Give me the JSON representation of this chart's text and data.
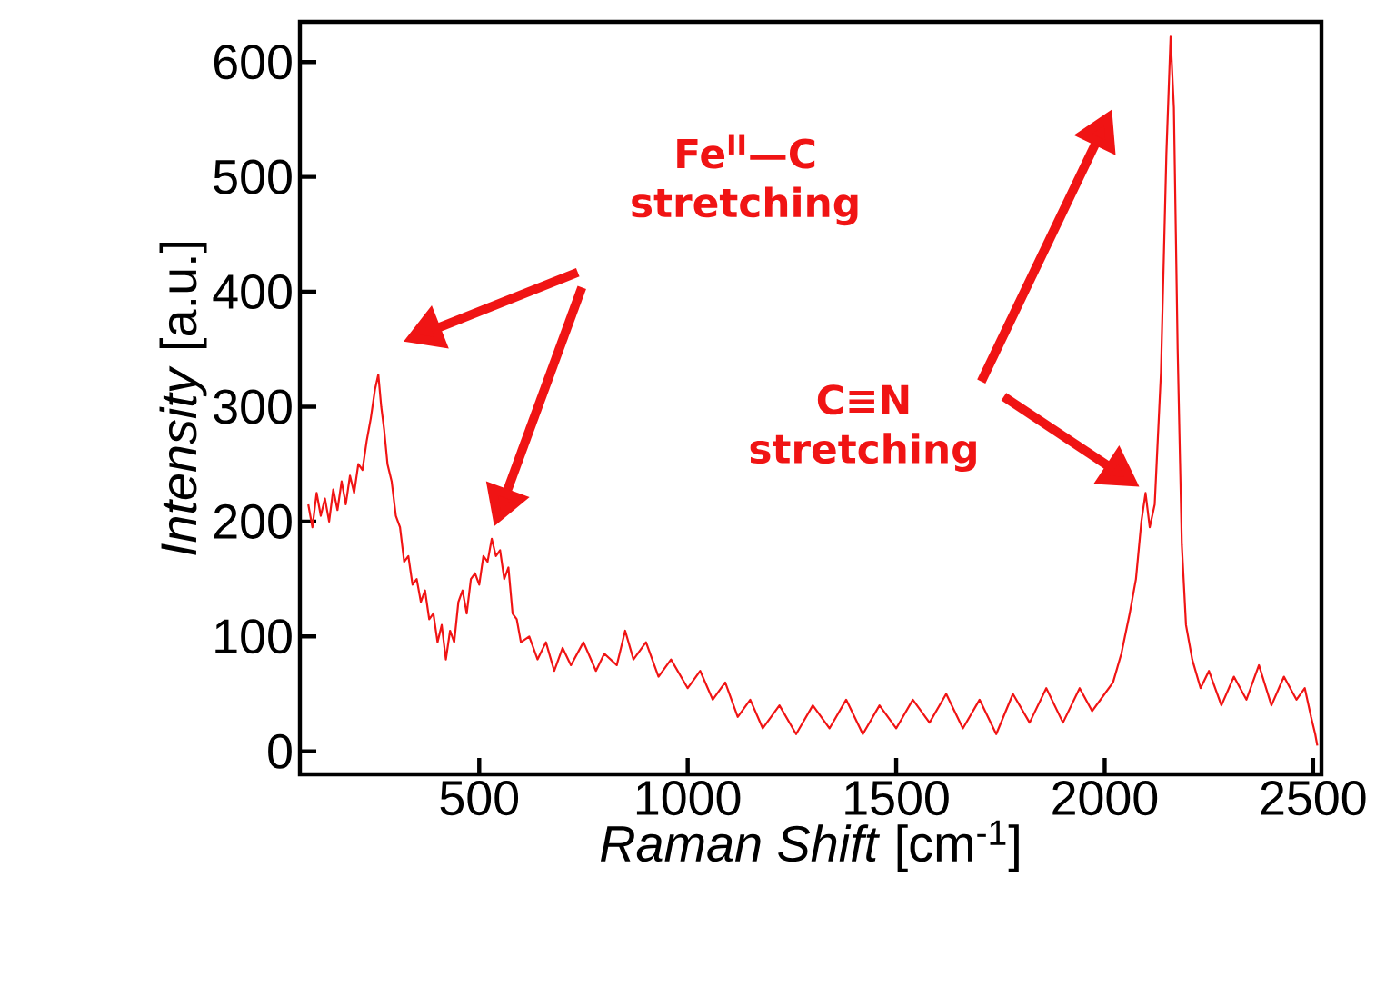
{
  "chart_data": {
    "type": "line",
    "xlabel": "*Raman Shift* [cm$^{-1}$]",
    "ylabel": "*Intensity* [a.u.]",
    "xlim": [
      70,
      2520
    ],
    "ylim": [
      -20,
      635
    ],
    "xticks": [
      500,
      1000,
      1500,
      2000,
      2500
    ],
    "yticks": [
      0,
      100,
      200,
      300,
      400,
      500,
      600
    ],
    "annotations": [
      "Fe$^{II}$—C stretching",
      "C≡N stretching"
    ],
    "series": [
      {
        "color": "#f01414",
        "x": [
          90,
          100,
          110,
          120,
          130,
          140,
          150,
          160,
          170,
          180,
          190,
          200,
          210,
          220,
          230,
          240,
          250,
          258,
          265,
          272,
          280,
          290,
          300,
          310,
          320,
          330,
          340,
          350,
          360,
          370,
          380,
          390,
          400,
          410,
          420,
          430,
          440,
          450,
          460,
          470,
          480,
          490,
          500,
          510,
          520,
          530,
          540,
          550,
          560,
          570,
          580,
          590,
          600,
          620,
          640,
          660,
          680,
          700,
          720,
          750,
          780,
          800,
          830,
          850,
          870,
          900,
          930,
          960,
          1000,
          1030,
          1060,
          1090,
          1120,
          1150,
          1180,
          1220,
          1260,
          1300,
          1340,
          1380,
          1420,
          1460,
          1500,
          1540,
          1580,
          1620,
          1660,
          1700,
          1740,
          1780,
          1820,
          1860,
          1900,
          1940,
          1970,
          2000,
          2020,
          2040,
          2060,
          2075,
          2088,
          2098,
          2108,
          2120,
          2135,
          2148,
          2158,
          2166,
          2175,
          2185,
          2195,
          2210,
          2230,
          2250,
          2280,
          2310,
          2340,
          2370,
          2400,
          2430,
          2460,
          2480,
          2495,
          2505,
          2510
        ],
        "values": [
          215,
          195,
          225,
          205,
          220,
          200,
          228,
          210,
          235,
          215,
          240,
          225,
          250,
          245,
          270,
          290,
          315,
          328,
          300,
          280,
          250,
          235,
          205,
          195,
          165,
          170,
          145,
          150,
          130,
          140,
          115,
          120,
          95,
          110,
          80,
          105,
          95,
          130,
          140,
          120,
          150,
          155,
          145,
          170,
          165,
          185,
          170,
          175,
          150,
          160,
          120,
          115,
          95,
          100,
          80,
          95,
          70,
          90,
          75,
          95,
          70,
          85,
          75,
          105,
          80,
          95,
          65,
          80,
          55,
          70,
          45,
          60,
          30,
          45,
          20,
          40,
          15,
          40,
          20,
          45,
          15,
          40,
          20,
          45,
          25,
          50,
          20,
          45,
          15,
          50,
          25,
          55,
          25,
          55,
          35,
          50,
          60,
          85,
          120,
          150,
          200,
          225,
          195,
          215,
          330,
          520,
          622,
          560,
          350,
          180,
          110,
          80,
          55,
          70,
          40,
          65,
          45,
          75,
          40,
          65,
          45,
          55,
          30,
          15,
          5
        ]
      }
    ]
  }
}
